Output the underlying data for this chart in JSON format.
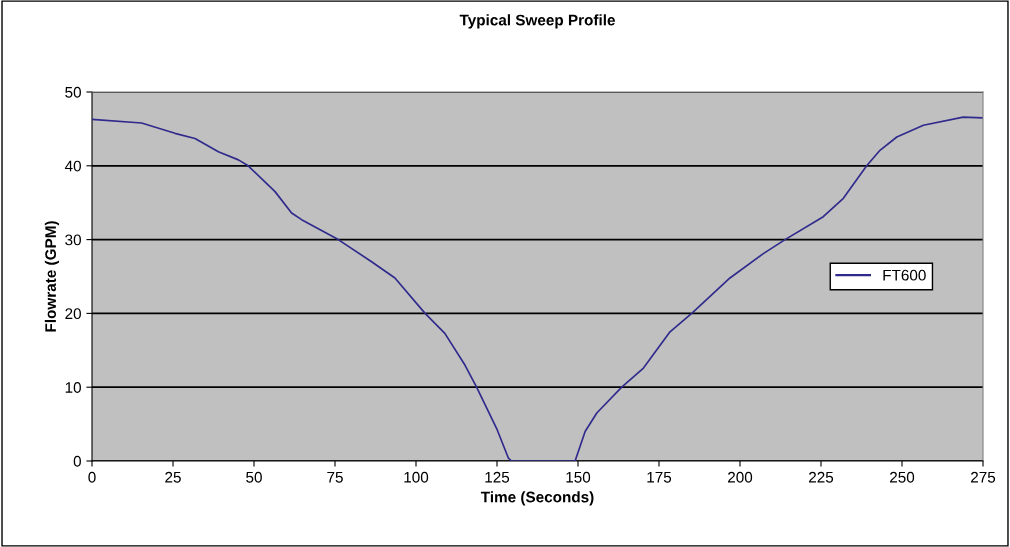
{
  "chart_data": {
    "type": "line",
    "title": "Typical Sweep Profile",
    "xlabel": "Time (Seconds)",
    "ylabel": "Flowrate (GPM)",
    "xlim": [
      0,
      275
    ],
    "xticks": [
      0,
      25,
      50,
      75,
      100,
      125,
      150,
      175,
      200,
      225,
      250,
      275
    ],
    "ylim": [
      0,
      50
    ],
    "yticks": [
      0,
      10,
      20,
      30,
      40,
      50
    ],
    "grid": "y",
    "legend": "right",
    "marker": "none",
    "line_style": "solid",
    "series": [
      {
        "name": "FT600",
        "color": "#302a8c",
        "x": [
          0,
          15.3,
          25.6,
          31.8,
          39,
          45.2,
          48.2,
          56.5,
          61.6,
          64.7,
          76,
          86.3,
          93.5,
          102.8,
          108.9,
          115.1,
          118.7,
          124.9,
          128.5,
          129.5,
          149.1,
          152.2,
          155.8,
          163.5,
          170.2,
          178.4,
          185.1,
          196.9,
          207.2,
          213.9,
          225.7,
          231.9,
          239.1,
          243.2,
          248.4,
          256.6,
          268.9,
          274.6
        ],
        "values": [
          46.3,
          45.8,
          44.4,
          43.7,
          41.9,
          40.8,
          40,
          36.5,
          33.6,
          32.7,
          30,
          27,
          24.8,
          20,
          17.3,
          13,
          10,
          4.4,
          0.4,
          0,
          0,
          4,
          6.5,
          10,
          12.6,
          17.5,
          20,
          24.8,
          28.1,
          30,
          33.1,
          35.6,
          40,
          42.1,
          43.9,
          45.5,
          46.6,
          46.5
        ]
      }
    ]
  }
}
